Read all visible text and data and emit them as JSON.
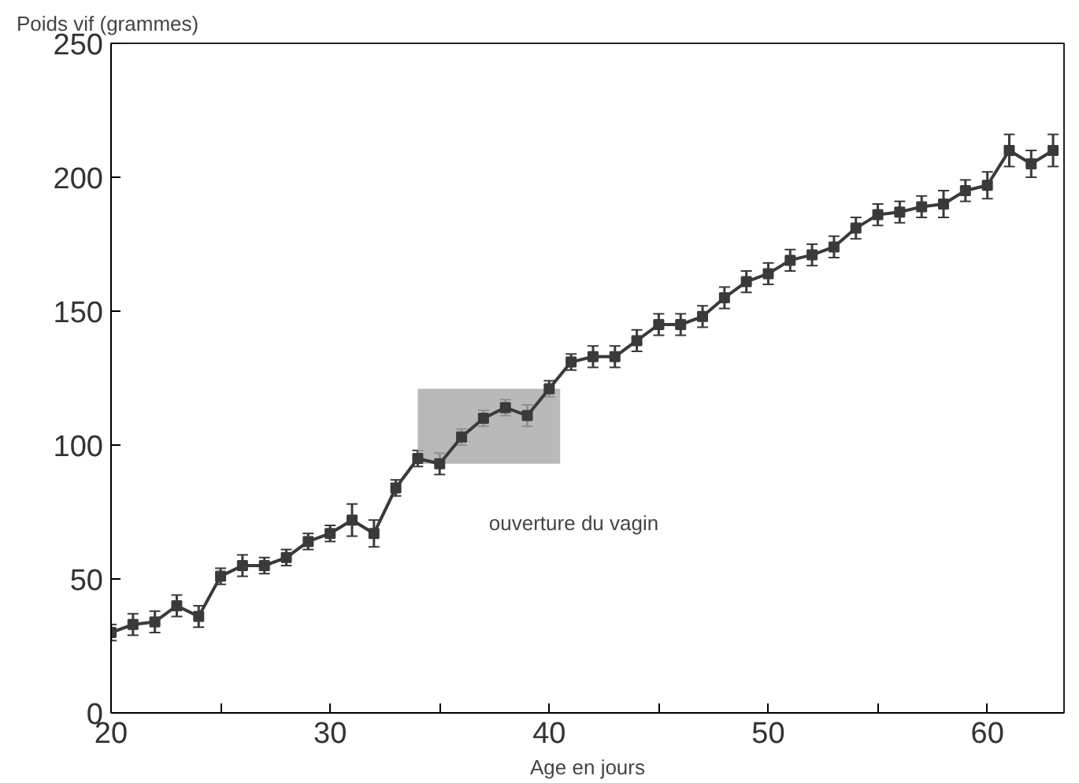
{
  "chart_data": {
    "type": "line",
    "xlabel": "Age en jours",
    "ylabel": "Poids vif (grammes)",
    "x": [
      20,
      21,
      22,
      23,
      24,
      25,
      26,
      27,
      28,
      29,
      30,
      31,
      32,
      33,
      34,
      35,
      36,
      37,
      38,
      39,
      40,
      41,
      42,
      43,
      44,
      45,
      46,
      47,
      48,
      49,
      50,
      51,
      52,
      53,
      54,
      55,
      56,
      57,
      58,
      59,
      60,
      61,
      62,
      63
    ],
    "series": [
      {
        "color": "#3a3a3a",
        "values": [
          30,
          33,
          34,
          40,
          36,
          51,
          55,
          55,
          58,
          64,
          67,
          72,
          67,
          84,
          95,
          93,
          103,
          110,
          114,
          111,
          121,
          131,
          133,
          133,
          139,
          145,
          145,
          148,
          155,
          161,
          164,
          169,
          171,
          174,
          181,
          186,
          187,
          189,
          190,
          195,
          197,
          210,
          205,
          210
        ],
        "errors": [
          3,
          4,
          4,
          4,
          4,
          3,
          4,
          3,
          3,
          3,
          3,
          6,
          5,
          3,
          3,
          4,
          3,
          3,
          3,
          4,
          3,
          3,
          4,
          4,
          4,
          4,
          4,
          4,
          4,
          4,
          4,
          4,
          4,
          4,
          4,
          4,
          4,
          4,
          5,
          4,
          5,
          6,
          5,
          6
        ]
      }
    ],
    "bands": [
      {
        "axis": "x",
        "from": 34,
        "to": 40.5,
        "label": "ouverture du vagin",
        "color": "#a8a8a8"
      }
    ],
    "xlim": [
      20,
      63.5
    ],
    "ylim": [
      0,
      250
    ],
    "xticks": [
      20,
      {
        "value": 25,
        "label": null
      },
      30,
      {
        "value": 35,
        "label": null
      },
      40,
      {
        "value": 45,
        "label": null
      },
      50,
      {
        "value": 55,
        "label": null
      },
      60
    ],
    "yticks": [
      0,
      50,
      100,
      150,
      200,
      250
    ],
    "marker": "square",
    "line_style": "solid",
    "grid": false
  }
}
